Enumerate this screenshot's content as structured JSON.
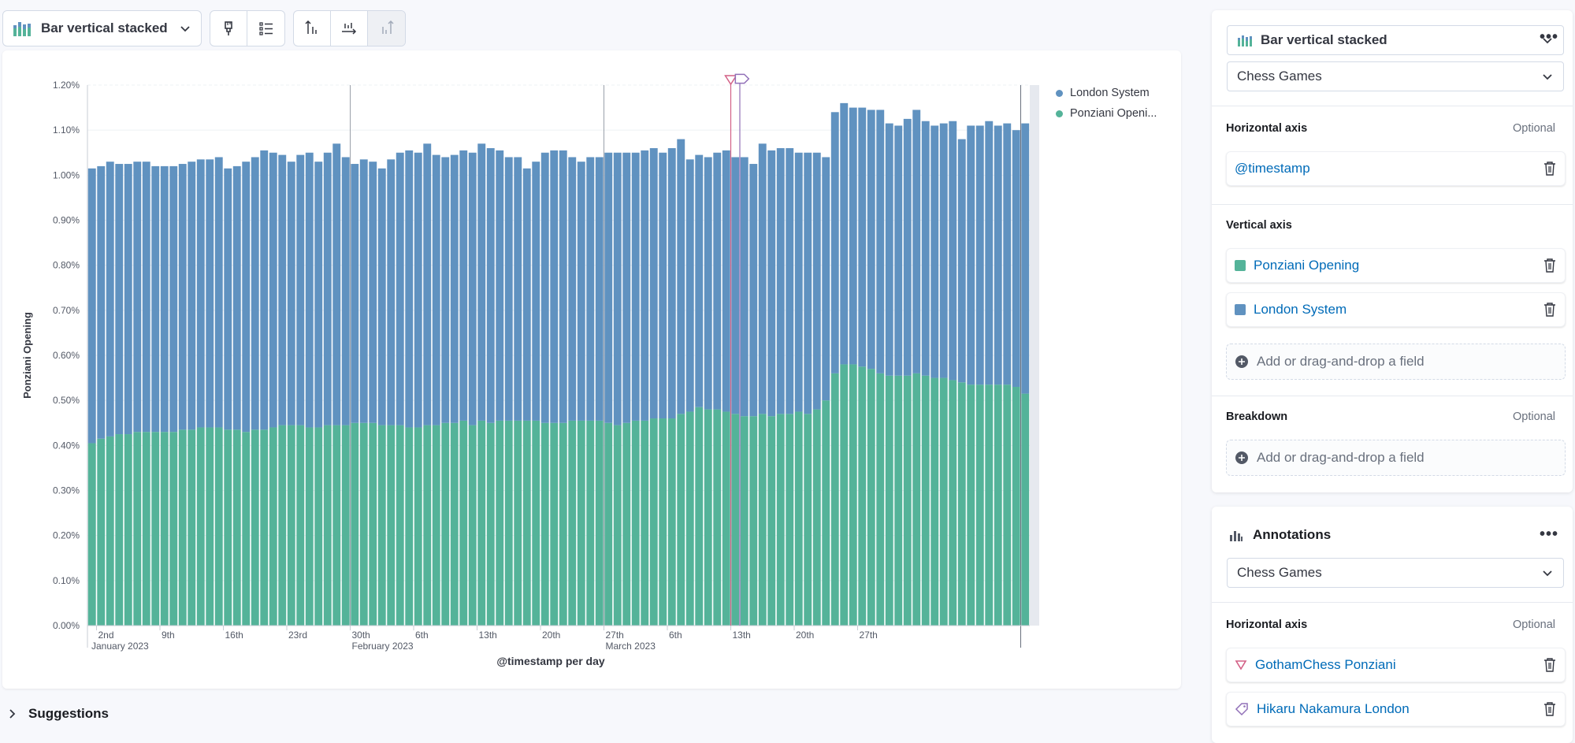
{
  "toolbar": {
    "chart_type_label": "Bar vertical stacked"
  },
  "legend": [
    {
      "label": "London System",
      "color": "#6092c0"
    },
    {
      "label": "Ponziani Openi...",
      "color": "#54b399"
    }
  ],
  "suggestions_label": "Suggestions",
  "config_panel": {
    "chart_type_label": "Bar vertical stacked",
    "data_view": "Chess Games",
    "horizontal_axis_label": "Horizontal axis",
    "optional": "Optional",
    "horizontal_field": "@timestamp",
    "vertical_axis_label": "Vertical axis",
    "vertical_fields": [
      {
        "label": "Ponziani Opening",
        "color": "#54b399"
      },
      {
        "label": "London System",
        "color": "#6092c0"
      }
    ],
    "add_field": "Add or drag-and-drop a field",
    "breakdown_label": "Breakdown",
    "breakdown_add": "Add or drag-and-drop a field"
  },
  "annotations_panel": {
    "title": "Annotations",
    "data_view": "Chess Games",
    "horizontal_axis_label": "Horizontal axis",
    "optional": "Optional",
    "items": [
      {
        "label": "GothamChess Ponziani",
        "icon": "triangle-icon",
        "color": "#d36086"
      },
      {
        "label": "Hikaru Nakamura London",
        "icon": "tag-icon",
        "color": "#9170b8"
      }
    ]
  },
  "chart_data": {
    "type": "bar",
    "stacked": true,
    "ylabel": "Ponziani Opening",
    "xlabel": "@timestamp per day",
    "ylim": [
      0,
      1.2
    ],
    "y_ticks": [
      "0.00%",
      "0.10%",
      "0.20%",
      "0.30%",
      "0.40%",
      "0.50%",
      "0.60%",
      "0.70%",
      "0.80%",
      "0.90%",
      "1.00%",
      "1.10%",
      "1.20%"
    ],
    "x_ticks": [
      {
        "label": "2nd",
        "sub": "January 2023",
        "day": 1
      },
      {
        "label": "9th",
        "day": 8
      },
      {
        "label": "16th",
        "day": 15
      },
      {
        "label": "23rd",
        "day": 22
      },
      {
        "label": "30th",
        "sub": "February 2023",
        "day": 29
      },
      {
        "label": "6th",
        "day": 36
      },
      {
        "label": "13th",
        "day": 43
      },
      {
        "label": "20th",
        "day": 50
      },
      {
        "label": "27th",
        "sub": "March 2023",
        "day": 57
      },
      {
        "label": "6th",
        "day": 64
      },
      {
        "label": "13th",
        "day": 71
      },
      {
        "label": "20th",
        "day": 78
      },
      {
        "label": "27th",
        "day": 85
      }
    ],
    "grid": true,
    "series": [
      {
        "name": "Ponziani Opening",
        "color": "#54b399",
        "values": [
          0.405,
          0.415,
          0.42,
          0.425,
          0.425,
          0.43,
          0.43,
          0.43,
          0.43,
          0.43,
          0.435,
          0.435,
          0.44,
          0.44,
          0.44,
          0.435,
          0.435,
          0.43,
          0.435,
          0.435,
          0.44,
          0.445,
          0.445,
          0.445,
          0.44,
          0.44,
          0.445,
          0.445,
          0.445,
          0.45,
          0.45,
          0.45,
          0.445,
          0.445,
          0.445,
          0.44,
          0.44,
          0.445,
          0.445,
          0.45,
          0.45,
          0.455,
          0.445,
          0.455,
          0.45,
          0.455,
          0.455,
          0.455,
          0.455,
          0.455,
          0.45,
          0.45,
          0.45,
          0.455,
          0.455,
          0.455,
          0.455,
          0.45,
          0.445,
          0.45,
          0.455,
          0.455,
          0.46,
          0.46,
          0.46,
          0.47,
          0.475,
          0.485,
          0.48,
          0.48,
          0.475,
          0.47,
          0.465,
          0.465,
          0.47,
          0.465,
          0.47,
          0.47,
          0.475,
          0.47,
          0.48,
          0.5,
          0.56,
          0.58,
          0.58,
          0.575,
          0.57,
          0.56,
          0.555,
          0.555,
          0.555,
          0.56,
          0.555,
          0.55,
          0.55,
          0.545,
          0.54,
          0.535,
          0.535,
          0.535,
          0.535,
          0.535,
          0.53,
          0.515
        ]
      },
      {
        "name": "London System",
        "color": "#6092c0",
        "values": [
          0.61,
          0.605,
          0.61,
          0.6,
          0.6,
          0.6,
          0.6,
          0.59,
          0.59,
          0.59,
          0.59,
          0.595,
          0.595,
          0.595,
          0.6,
          0.58,
          0.585,
          0.6,
          0.605,
          0.62,
          0.61,
          0.6,
          0.585,
          0.6,
          0.61,
          0.59,
          0.605,
          0.625,
          0.595,
          0.575,
          0.585,
          0.58,
          0.57,
          0.59,
          0.605,
          0.615,
          0.61,
          0.625,
          0.6,
          0.59,
          0.595,
          0.6,
          0.605,
          0.615,
          0.61,
          0.6,
          0.585,
          0.585,
          0.56,
          0.575,
          0.6,
          0.605,
          0.605,
          0.585,
          0.575,
          0.585,
          0.585,
          0.6,
          0.605,
          0.6,
          0.595,
          0.6,
          0.6,
          0.59,
          0.6,
          0.61,
          0.56,
          0.56,
          0.56,
          0.57,
          0.58,
          0.57,
          0.575,
          0.56,
          0.6,
          0.59,
          0.59,
          0.59,
          0.575,
          0.58,
          0.57,
          0.54,
          0.58,
          0.58,
          0.57,
          0.575,
          0.575,
          0.585,
          0.56,
          0.555,
          0.57,
          0.585,
          0.565,
          0.56,
          0.565,
          0.575,
          0.54,
          0.575,
          0.575,
          0.585,
          0.575,
          0.58,
          0.57,
          0.6
        ]
      }
    ],
    "annotations": [
      {
        "label": "GothamChess Ponziani",
        "day": 71
      },
      {
        "label": "Hikaru Nakamura London",
        "day": 72
      }
    ]
  }
}
